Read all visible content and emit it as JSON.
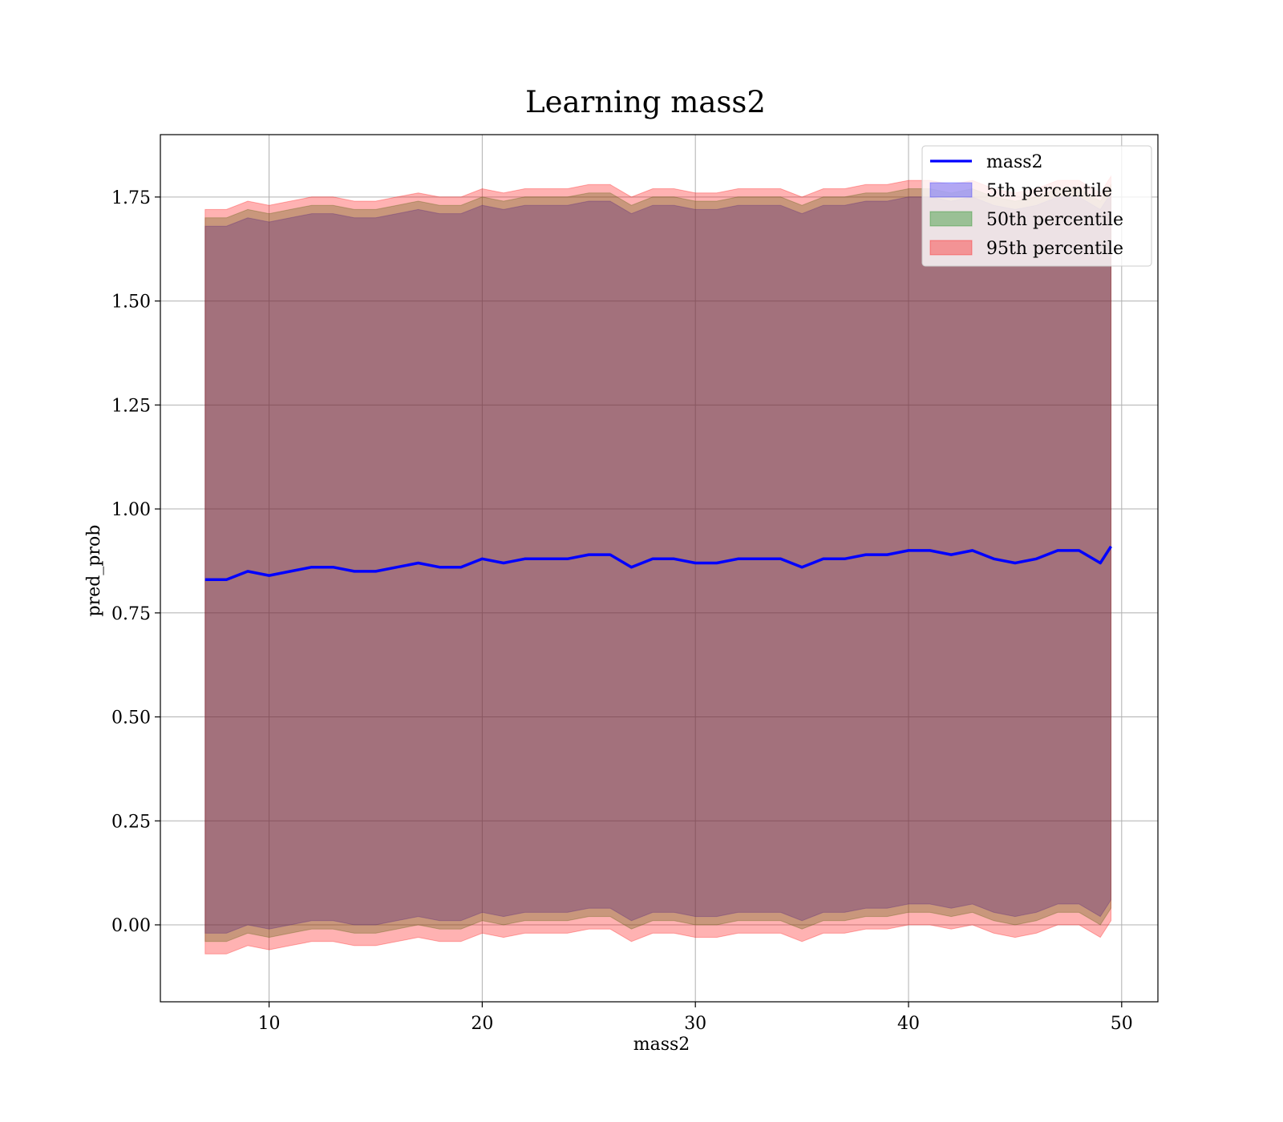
{
  "chart_data": {
    "type": "area",
    "title": "Learning mass2",
    "xlabel": "mass2",
    "ylabel": "pred_prob",
    "xlim": [
      4.9,
      51.7
    ],
    "ylim": [
      -0.185,
      1.9
    ],
    "xticks": [
      10,
      20,
      30,
      40,
      50
    ],
    "xtick_labels": [
      "10",
      "20",
      "30",
      "40",
      "50"
    ],
    "yticks": [
      0.0,
      0.25,
      0.5,
      0.75,
      1.0,
      1.25,
      1.5,
      1.75
    ],
    "ytick_labels": [
      "0.00",
      "0.25",
      "0.50",
      "0.75",
      "1.00",
      "1.25",
      "1.50",
      "1.75"
    ],
    "grid": true,
    "legend_position": "top-right",
    "x": [
      7.0,
      8.0,
      9.0,
      10.0,
      11.0,
      12.0,
      13.0,
      14.0,
      15.0,
      16.0,
      17.0,
      18.0,
      19.0,
      20.0,
      21.0,
      22.0,
      23.0,
      24.0,
      25.0,
      26.0,
      27.0,
      28.0,
      29.0,
      30.0,
      31.0,
      32.0,
      33.0,
      34.0,
      35.0,
      36.0,
      37.0,
      38.0,
      39.0,
      40.0,
      41.0,
      42.0,
      43.0,
      44.0,
      45.0,
      46.0,
      47.0,
      48.0,
      49.0,
      49.5
    ],
    "series": [
      {
        "name": "mass2",
        "kind": "line",
        "color": "#0000ff",
        "values": [
          0.83,
          0.83,
          0.85,
          0.84,
          0.85,
          0.86,
          0.86,
          0.85,
          0.85,
          0.86,
          0.87,
          0.86,
          0.86,
          0.88,
          0.87,
          0.88,
          0.88,
          0.88,
          0.89,
          0.89,
          0.86,
          0.88,
          0.88,
          0.87,
          0.87,
          0.88,
          0.88,
          0.88,
          0.86,
          0.88,
          0.88,
          0.89,
          0.89,
          0.9,
          0.9,
          0.89,
          0.9,
          0.88,
          0.87,
          0.88,
          0.9,
          0.9,
          0.87,
          0.91
        ]
      },
      {
        "name": "5th percentile",
        "kind": "band",
        "color": "#0000ff",
        "lower": [
          -0.02,
          -0.02,
          0.0,
          -0.01,
          0.0,
          0.01,
          0.01,
          0.0,
          0.0,
          0.01,
          0.02,
          0.01,
          0.01,
          0.03,
          0.02,
          0.03,
          0.03,
          0.03,
          0.04,
          0.04,
          0.01,
          0.03,
          0.03,
          0.02,
          0.02,
          0.03,
          0.03,
          0.03,
          0.01,
          0.03,
          0.03,
          0.04,
          0.04,
          0.05,
          0.05,
          0.04,
          0.05,
          0.03,
          0.02,
          0.03,
          0.05,
          0.05,
          0.02,
          0.06
        ],
        "upper": [
          1.68,
          1.68,
          1.7,
          1.69,
          1.7,
          1.71,
          1.71,
          1.7,
          1.7,
          1.71,
          1.72,
          1.71,
          1.71,
          1.73,
          1.72,
          1.73,
          1.73,
          1.73,
          1.74,
          1.74,
          1.71,
          1.73,
          1.73,
          1.72,
          1.72,
          1.73,
          1.73,
          1.73,
          1.71,
          1.73,
          1.73,
          1.74,
          1.74,
          1.75,
          1.75,
          1.74,
          1.75,
          1.73,
          1.72,
          1.73,
          1.75,
          1.75,
          1.72,
          1.76
        ]
      },
      {
        "name": "50th percentile",
        "kind": "band",
        "color": "#008000",
        "lower": [
          -0.04,
          -0.04,
          -0.02,
          -0.03,
          -0.02,
          -0.01,
          -0.01,
          -0.02,
          -0.02,
          -0.01,
          0.0,
          -0.01,
          -0.01,
          0.01,
          0.0,
          0.01,
          0.01,
          0.01,
          0.02,
          0.02,
          -0.01,
          0.01,
          0.01,
          0.0,
          0.0,
          0.01,
          0.01,
          0.01,
          -0.01,
          0.01,
          0.01,
          0.02,
          0.02,
          0.03,
          0.03,
          0.02,
          0.03,
          0.01,
          0.0,
          0.01,
          0.03,
          0.03,
          0.0,
          0.04
        ],
        "upper": [
          1.7,
          1.7,
          1.72,
          1.71,
          1.72,
          1.73,
          1.73,
          1.72,
          1.72,
          1.73,
          1.74,
          1.73,
          1.73,
          1.75,
          1.74,
          1.75,
          1.75,
          1.75,
          1.76,
          1.76,
          1.73,
          1.75,
          1.75,
          1.74,
          1.74,
          1.75,
          1.75,
          1.75,
          1.73,
          1.75,
          1.75,
          1.76,
          1.76,
          1.77,
          1.77,
          1.76,
          1.77,
          1.75,
          1.74,
          1.75,
          1.77,
          1.77,
          1.74,
          1.78
        ]
      },
      {
        "name": "95th percentile",
        "kind": "band",
        "color": "#ff0000",
        "lower": [
          -0.07,
          -0.07,
          -0.05,
          -0.06,
          -0.05,
          -0.04,
          -0.04,
          -0.05,
          -0.05,
          -0.04,
          -0.03,
          -0.04,
          -0.04,
          -0.02,
          -0.03,
          -0.02,
          -0.02,
          -0.02,
          -0.01,
          -0.01,
          -0.04,
          -0.02,
          -0.02,
          -0.03,
          -0.03,
          -0.02,
          -0.02,
          -0.02,
          -0.04,
          -0.02,
          -0.02,
          -0.01,
          -0.01,
          0.0,
          0.0,
          -0.01,
          0.0,
          -0.02,
          -0.03,
          -0.02,
          0.0,
          0.0,
          -0.03,
          0.01
        ],
        "upper": [
          1.72,
          1.72,
          1.74,
          1.73,
          1.74,
          1.75,
          1.75,
          1.74,
          1.74,
          1.75,
          1.76,
          1.75,
          1.75,
          1.77,
          1.76,
          1.77,
          1.77,
          1.77,
          1.78,
          1.78,
          1.75,
          1.77,
          1.77,
          1.76,
          1.76,
          1.77,
          1.77,
          1.77,
          1.75,
          1.77,
          1.77,
          1.78,
          1.78,
          1.79,
          1.79,
          1.78,
          1.79,
          1.77,
          1.76,
          1.77,
          1.79,
          1.79,
          1.76,
          1.8
        ]
      }
    ]
  }
}
